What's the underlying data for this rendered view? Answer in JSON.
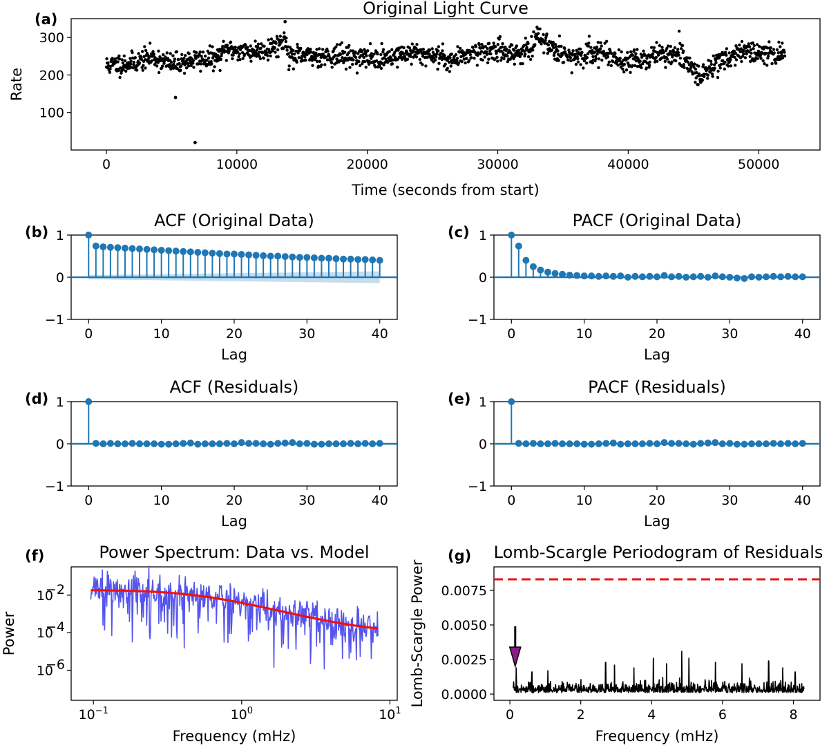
{
  "chart_data": [
    {
      "panel": "(a)",
      "type": "scatter",
      "title": "Original Light Curve",
      "xlabel": "Time (seconds from start)",
      "ylabel": "Rate",
      "xlim": [
        -2700,
        54700
      ],
      "ylim": [
        0,
        350
      ],
      "xticks": [
        0,
        10000,
        20000,
        30000,
        40000,
        50000
      ],
      "xtick_labels": [
        "0",
        "10000",
        "20000",
        "30000",
        "40000",
        "50000"
      ],
      "yticks": [
        100,
        200,
        300
      ],
      "ytick_labels": [
        "100",
        "200",
        "300"
      ],
      "baseline_segments": [
        {
          "x": 0,
          "y": 225
        },
        {
          "x": 2000,
          "y": 232
        },
        {
          "x": 3500,
          "y": 248
        },
        {
          "x": 5000,
          "y": 228
        },
        {
          "x": 6500,
          "y": 240
        },
        {
          "x": 8500,
          "y": 244
        },
        {
          "x": 9200,
          "y": 268
        },
        {
          "x": 11000,
          "y": 262
        },
        {
          "x": 12500,
          "y": 270
        },
        {
          "x": 13800,
          "y": 295
        },
        {
          "x": 14000,
          "y": 248
        },
        {
          "x": 17000,
          "y": 252
        },
        {
          "x": 19000,
          "y": 248
        },
        {
          "x": 21000,
          "y": 242
        },
        {
          "x": 23000,
          "y": 258
        },
        {
          "x": 25000,
          "y": 255
        },
        {
          "x": 26500,
          "y": 238
        },
        {
          "x": 28000,
          "y": 262
        },
        {
          "x": 30000,
          "y": 264
        },
        {
          "x": 31500,
          "y": 258
        },
        {
          "x": 32800,
          "y": 272
        },
        {
          "x": 33000,
          "y": 305
        },
        {
          "x": 34000,
          "y": 278
        },
        {
          "x": 35000,
          "y": 260
        },
        {
          "x": 36000,
          "y": 238
        },
        {
          "x": 37000,
          "y": 260
        },
        {
          "x": 38500,
          "y": 258
        },
        {
          "x": 39500,
          "y": 236
        },
        {
          "x": 41500,
          "y": 242
        },
        {
          "x": 42000,
          "y": 255
        },
        {
          "x": 44000,
          "y": 252
        },
        {
          "x": 45500,
          "y": 195
        },
        {
          "x": 47000,
          "y": 240
        },
        {
          "x": 49000,
          "y": 265
        },
        {
          "x": 50500,
          "y": 250
        },
        {
          "x": 52000,
          "y": 262
        }
      ],
      "outliers": [
        {
          "x": 5300,
          "y": 140
        },
        {
          "x": 6800,
          "y": 20
        },
        {
          "x": 13700,
          "y": 342
        }
      ],
      "note": "~1600 dense points following the baseline with ~15 counts scatter"
    },
    {
      "panel": "(b)",
      "type": "stem",
      "title": "ACF (Original Data)",
      "xlabel": "Lag",
      "xlim": [
        -2.4,
        42.4
      ],
      "ylim": [
        -1,
        1
      ],
      "xticks": [
        0,
        10,
        20,
        30,
        40
      ],
      "xtick_labels": [
        "0",
        "10",
        "20",
        "30",
        "40"
      ],
      "yticks": [
        -1,
        0,
        1
      ],
      "ytick_labels": [
        "−1",
        "0",
        "1"
      ],
      "lags": [
        0,
        1,
        2,
        3,
        4,
        5,
        6,
        7,
        8,
        9,
        10,
        11,
        12,
        13,
        14,
        15,
        16,
        17,
        18,
        19,
        20,
        21,
        22,
        23,
        24,
        25,
        26,
        27,
        28,
        29,
        30,
        31,
        32,
        33,
        34,
        35,
        36,
        37,
        38,
        39,
        40
      ],
      "values": [
        1.0,
        0.74,
        0.72,
        0.71,
        0.7,
        0.69,
        0.68,
        0.67,
        0.66,
        0.65,
        0.64,
        0.63,
        0.62,
        0.61,
        0.6,
        0.59,
        0.58,
        0.57,
        0.56,
        0.55,
        0.55,
        0.54,
        0.53,
        0.52,
        0.51,
        0.5,
        0.5,
        0.49,
        0.48,
        0.47,
        0.47,
        0.46,
        0.45,
        0.45,
        0.44,
        0.43,
        0.43,
        0.42,
        0.42,
        0.41,
        0.4
      ],
      "confidence_band": {
        "start": 0.05,
        "end": 0.14
      }
    },
    {
      "panel": "(c)",
      "type": "stem",
      "title": "PACF (Original Data)",
      "xlabel": "Lag",
      "xlim": [
        -2.4,
        42.4
      ],
      "ylim": [
        -1,
        1
      ],
      "xticks": [
        0,
        10,
        20,
        30,
        40
      ],
      "xtick_labels": [
        "0",
        "10",
        "20",
        "30",
        "40"
      ],
      "yticks": [
        -1,
        0,
        1
      ],
      "ytick_labels": [
        "−1",
        "0",
        "1"
      ],
      "lags": [
        0,
        1,
        2,
        3,
        4,
        5,
        6,
        7,
        8,
        9,
        10,
        11,
        12,
        13,
        14,
        15,
        16,
        17,
        18,
        19,
        20,
        21,
        22,
        23,
        24,
        25,
        26,
        27,
        28,
        29,
        30,
        31,
        32,
        33,
        34,
        35,
        36,
        37,
        38,
        39,
        40
      ],
      "values": [
        1.0,
        0.74,
        0.4,
        0.25,
        0.17,
        0.12,
        0.09,
        0.07,
        0.05,
        0.04,
        0.03,
        0.03,
        0.02,
        0.03,
        0.02,
        0.03,
        0.0,
        0.02,
        0.01,
        0.02,
        0.01,
        0.04,
        0.01,
        0.02,
        0.0,
        0.01,
        0.02,
        0.0,
        0.03,
        0.01,
        0.0,
        -0.02,
        -0.03,
        0.01,
        0.0,
        0.01,
        0.02,
        0.01,
        0.02,
        0.01,
        0.01
      ]
    },
    {
      "panel": "(d)",
      "type": "stem",
      "title": "ACF (Residuals)",
      "xlabel": "Lag",
      "xlim": [
        -2.4,
        42.4
      ],
      "ylim": [
        -1,
        1
      ],
      "xticks": [
        0,
        10,
        20,
        30,
        40
      ],
      "xtick_labels": [
        "0",
        "10",
        "20",
        "30",
        "40"
      ],
      "yticks": [
        -1,
        0,
        1
      ],
      "ytick_labels": [
        "−1",
        "0",
        "1"
      ],
      "lags": [
        0,
        1,
        2,
        3,
        4,
        5,
        6,
        7,
        8,
        9,
        10,
        11,
        12,
        13,
        14,
        15,
        16,
        17,
        18,
        19,
        20,
        21,
        22,
        23,
        24,
        25,
        26,
        27,
        28,
        29,
        30,
        31,
        32,
        33,
        34,
        35,
        36,
        37,
        38,
        39,
        40
      ],
      "values": [
        1.0,
        0.01,
        0.0,
        0.01,
        0.0,
        0.0,
        0.01,
        0.0,
        0.0,
        0.0,
        -0.01,
        -0.01,
        0.0,
        0.01,
        0.02,
        -0.01,
        0.0,
        0.0,
        0.0,
        0.01,
        0.0,
        0.03,
        0.01,
        0.01,
        0.0,
        -0.01,
        0.01,
        0.02,
        0.03,
        0.0,
        0.01,
        -0.01,
        -0.01,
        0.0,
        0.0,
        0.0,
        0.01,
        0.0,
        0.01,
        0.0,
        0.01
      ]
    },
    {
      "panel": "(e)",
      "type": "stem",
      "title": "PACF (Residuals)",
      "xlabel": "Lag",
      "xlim": [
        -2.4,
        42.4
      ],
      "ylim": [
        -1,
        1
      ],
      "xticks": [
        0,
        10,
        20,
        30,
        40
      ],
      "xtick_labels": [
        "0",
        "10",
        "20",
        "30",
        "40"
      ],
      "yticks": [
        -1,
        0,
        1
      ],
      "ytick_labels": [
        "−1",
        "0",
        "1"
      ],
      "lags": [
        0,
        1,
        2,
        3,
        4,
        5,
        6,
        7,
        8,
        9,
        10,
        11,
        12,
        13,
        14,
        15,
        16,
        17,
        18,
        19,
        20,
        21,
        22,
        23,
        24,
        25,
        26,
        27,
        28,
        29,
        30,
        31,
        32,
        33,
        34,
        35,
        36,
        37,
        38,
        39,
        40
      ],
      "values": [
        1.0,
        0.01,
        0.0,
        0.01,
        0.0,
        0.0,
        0.01,
        0.0,
        0.0,
        0.0,
        -0.01,
        -0.01,
        0.0,
        0.01,
        0.02,
        -0.01,
        0.0,
        0.0,
        0.0,
        0.01,
        0.0,
        0.03,
        0.01,
        0.01,
        0.0,
        -0.01,
        0.01,
        0.02,
        0.03,
        0.0,
        0.01,
        -0.01,
        -0.01,
        0.0,
        0.0,
        0.0,
        0.01,
        0.0,
        0.01,
        0.0,
        0.01
      ]
    },
    {
      "panel": "(f)",
      "type": "line",
      "title": "Power Spectrum: Data vs. Model",
      "xlabel": "Frequency (mHz)",
      "ylabel": "Power",
      "xscale": "log",
      "yscale": "log",
      "xlim": [
        0.0708,
        11.2
      ],
      "ylim": [
        2.5e-08,
        0.32
      ],
      "xticks": [
        0.1,
        1,
        10
      ],
      "xtick_labels": [
        "10",
        "10",
        "10"
      ],
      "xtick_exponents": [
        "−1",
        "0",
        "1"
      ],
      "yticks": [
        1e-06,
        0.0001,
        0.01
      ],
      "ytick_labels": [
        "10",
        "10",
        "10"
      ],
      "ytick_exponents": [
        "−6",
        "−4",
        "−2"
      ],
      "series": [
        {
          "name": "Data",
          "color": "#5555ee",
          "freq_range": [
            0.096,
            8.3
          ],
          "note": "noisy periodogram scattered about the model with deep dips toward 1e-7"
        },
        {
          "name": "Model",
          "color": "#ee1111",
          "model": {
            "low_freq_power": 0.019,
            "high_freq_power": 0.0001,
            "break_mHz": 0.5,
            "slope": 2
          }
        }
      ]
    },
    {
      "panel": "(g)",
      "type": "line",
      "title": "Lomb-Scargle Periodogram of Residuals",
      "xlabel": "Frequency (mHz)",
      "ylabel": "Lomb-Scargle Power",
      "xlim": [
        -0.45,
        8.75
      ],
      "ylim": [
        -0.00045,
        0.0092
      ],
      "xticks": [
        0,
        2,
        4,
        6,
        8
      ],
      "xtick_labels": [
        "0",
        "2",
        "4",
        "6",
        "8"
      ],
      "yticks": [
        0.0,
        0.0025,
        0.005,
        0.0075
      ],
      "ytick_labels": [
        "0.0000",
        "0.0025",
        "0.0050",
        "0.0075"
      ],
      "significance_level": 0.0083,
      "significance_color": "#ee1111",
      "freq_range": [
        0.096,
        8.3
      ],
      "peaks": [
        {
          "x": 0.18,
          "y": 0.0019
        },
        {
          "x": 0.62,
          "y": 0.0016
        },
        {
          "x": 1.07,
          "y": 0.0017
        },
        {
          "x": 2.7,
          "y": 0.0023
        },
        {
          "x": 2.95,
          "y": 0.0021
        },
        {
          "x": 3.5,
          "y": 0.0019
        },
        {
          "x": 4.05,
          "y": 0.0026
        },
        {
          "x": 4.42,
          "y": 0.0022
        },
        {
          "x": 4.85,
          "y": 0.0031
        },
        {
          "x": 5.05,
          "y": 0.0026
        },
        {
          "x": 5.8,
          "y": 0.0023
        },
        {
          "x": 6.55,
          "y": 0.0022
        },
        {
          "x": 7.3,
          "y": 0.0024
        },
        {
          "x": 7.7,
          "y": 0.0019
        },
        {
          "x": 8.05,
          "y": 0.0016
        }
      ],
      "arrow": {
        "x": 0.15,
        "y_tail": 0.0049,
        "y_head": 0.002,
        "color": "#8b1a8b"
      }
    }
  ]
}
